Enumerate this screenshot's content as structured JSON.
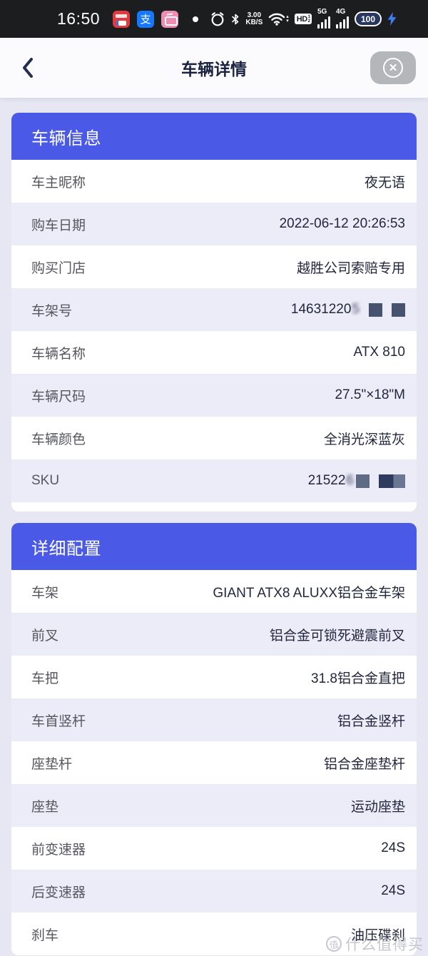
{
  "status_bar": {
    "time": "16:50",
    "alipay_glyph": "支",
    "net_speed": "3.00",
    "net_speed_unit": "KB/S",
    "volte_label": "HD",
    "volte_sim1": "1",
    "volte_sim2": "2",
    "sim1_network": "5G",
    "sim2_network": "4G",
    "battery_level": "100",
    "icons": [
      "red-app-icon",
      "alipay-app-icon",
      "pink-app-icon",
      "notification-dot",
      "alarm-clock-icon",
      "bluetooth-icon",
      "wifi-icon",
      "volte-hd-icon",
      "signal-5g-icon",
      "signal-4g-icon",
      "battery-icon",
      "charging-bolt-icon"
    ]
  },
  "header": {
    "title": "车辆详情",
    "back_icon": "chevron-left",
    "close_icon": "circle-x"
  },
  "cards": [
    {
      "title": "车辆信息",
      "rows": [
        {
          "label": "车主昵称",
          "value": "夜无语"
        },
        {
          "label": "购车日期",
          "value": "2022-06-12 20:26:53"
        },
        {
          "label": "购买门店",
          "value": "越胜公司索赔专用"
        },
        {
          "label": "车架号",
          "value": "14631220",
          "blurred_suffix": "5",
          "redaction_blocks": [
            "dark",
            "dark"
          ]
        },
        {
          "label": "车辆名称",
          "value": "ATX 810"
        },
        {
          "label": "车辆尺码",
          "value": "27.5\"×18\"M"
        },
        {
          "label": "车辆颜色",
          "value": "全消光深蓝灰"
        },
        {
          "label": "SKU",
          "value": "21522",
          "blurred_suffix": "6",
          "redaction_blocks": [
            "slate",
            "duo"
          ]
        }
      ]
    },
    {
      "title": "详细配置",
      "rows": [
        {
          "label": "车架",
          "value": "GIANT ATX8 ALUXX铝合金车架"
        },
        {
          "label": "前叉",
          "value": "铝合金可锁死避震前叉"
        },
        {
          "label": "车把",
          "value": "31.8铝合金直把"
        },
        {
          "label": "车首竖杆",
          "value": "铝合金竖杆"
        },
        {
          "label": "座垫杆",
          "value": "铝合金座垫杆"
        },
        {
          "label": "座垫",
          "value": "运动座垫"
        },
        {
          "label": "前变速器",
          "value": "24S"
        },
        {
          "label": "后变速器",
          "value": "24S"
        },
        {
          "label": "刹车",
          "value": "油压碟刹"
        }
      ]
    }
  ],
  "watermark": {
    "logo_char": "值",
    "text": "什么值得买"
  },
  "colors": {
    "accent_blue": "#4a5ae6",
    "page_bg": "#e6e7f3",
    "row_alt": "#ebecf8",
    "status_bar_bg": "#1c1d1f",
    "charging_bolt": "#3f7df0",
    "close_button_bg": "#b5b6ba"
  }
}
